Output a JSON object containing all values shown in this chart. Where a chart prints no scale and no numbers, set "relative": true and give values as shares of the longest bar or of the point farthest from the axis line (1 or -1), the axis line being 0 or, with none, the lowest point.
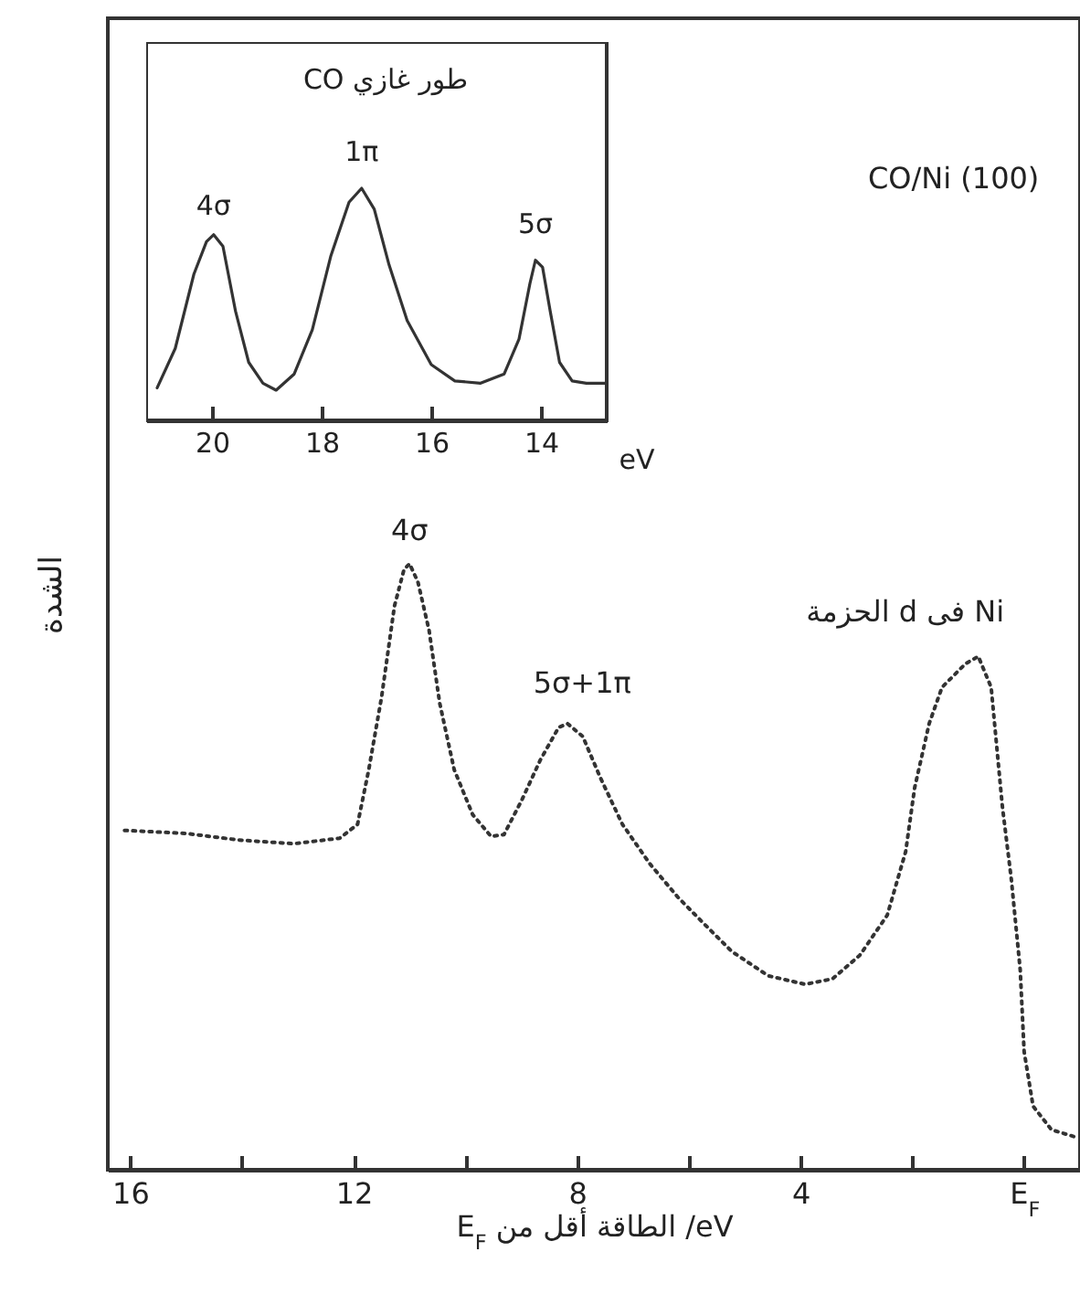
{
  "chart_data": [
    {
      "type": "line",
      "relative": true,
      "line_style": "dotted",
      "tick_labels": "x",
      "xlabel": "E$_{F}$ الطاقة أقل من /eV",
      "ylabel": "الشدة",
      "xlim": [
        16.4,
        -1
      ],
      "xticks": [
        16,
        {
          "value": 14,
          "label": null
        },
        12,
        {
          "value": 10,
          "label": null
        },
        8,
        {
          "value": 6,
          "label": null
        },
        4,
        {
          "value": 2,
          "label": null
        },
        {
          "value": 0,
          "label": "E$_{F}$"
        }
      ],
      "series": [
        {
          "color": "#333333",
          "x": [
            16.1,
            15.0,
            14.05,
            13.07,
            12.25,
            11.93,
            11.73,
            11.5,
            11.27,
            11.1,
            11.0,
            10.85,
            10.65,
            10.46,
            10.2,
            9.87,
            9.54,
            9.31,
            8.99,
            8.66,
            8.33,
            8.17,
            7.9,
            7.58,
            7.19,
            6.7,
            6.2,
            5.72,
            5.23,
            4.58,
            3.92,
            3.43,
            2.94,
            2.45,
            2.12,
            1.96,
            1.7,
            1.47,
            1.05,
            0.82,
            0.59,
            0.39,
            0.23,
            0.07,
            0,
            -0.16,
            -0.49,
            -0.92
          ],
          "values": [
            0.56,
            0.555,
            0.544,
            0.538,
            0.547,
            0.57,
            0.66,
            0.78,
            0.93,
            0.99,
            1.0,
            0.97,
            0.89,
            0.77,
            0.66,
            0.586,
            0.55,
            0.553,
            0.61,
            0.676,
            0.73,
            0.736,
            0.715,
            0.646,
            0.57,
            0.505,
            0.45,
            0.405,
            0.36,
            0.32,
            0.306,
            0.315,
            0.354,
            0.42,
            0.525,
            0.63,
            0.736,
            0.796,
            0.835,
            0.847,
            0.796,
            0.6,
            0.48,
            0.33,
            0.195,
            0.105,
            0.066,
            0.054
          ]
        }
      ],
      "annotations": [
        {
          "text": "4σ",
          "x": 11.0,
          "y": 1.0
        },
        {
          "text": "5σ+1π",
          "x": 8.17,
          "y": 0.736
        },
        {
          "text": "الحزمة d فى Ni",
          "x": 0.82,
          "y": 0.847
        },
        "CO/Ni (100)"
      ]
    },
    {
      "type": "line",
      "relative": true,
      "line_style": "solid",
      "tick_labels": "x",
      "xlabel": "eV",
      "xlim": [
        21.2,
        12.8
      ],
      "xticks": [
        20,
        18,
        16,
        14
      ],
      "series": [
        {
          "color": "#333333",
          "x": [
            21.0,
            20.67,
            20.33,
            20.1,
            19.97,
            19.8,
            19.57,
            19.33,
            19.07,
            18.83,
            18.5,
            18.17,
            17.83,
            17.5,
            17.27,
            17.04,
            16.77,
            16.44,
            16.0,
            15.57,
            15.1,
            14.67,
            14.4,
            14.2,
            14.1,
            13.97,
            13.83,
            13.66,
            13.43,
            13.17,
            12.83
          ],
          "values": [
            0.14,
            0.31,
            0.63,
            0.77,
            0.8,
            0.75,
            0.47,
            0.25,
            0.16,
            0.13,
            0.2,
            0.39,
            0.71,
            0.94,
            1.0,
            0.91,
            0.67,
            0.43,
            0.24,
            0.17,
            0.16,
            0.2,
            0.35,
            0.59,
            0.69,
            0.66,
            0.47,
            0.25,
            0.17,
            0.16,
            0.16
          ]
        }
      ],
      "annotations": [
        {
          "text": "4σ",
          "x": 19.97,
          "y": 0.8
        },
        {
          "text": "1π",
          "x": 17.27,
          "y": 1.0
        },
        {
          "text": "5σ",
          "x": 14.1,
          "y": 0.69
        },
        "CO طور غازي"
      ]
    }
  ]
}
